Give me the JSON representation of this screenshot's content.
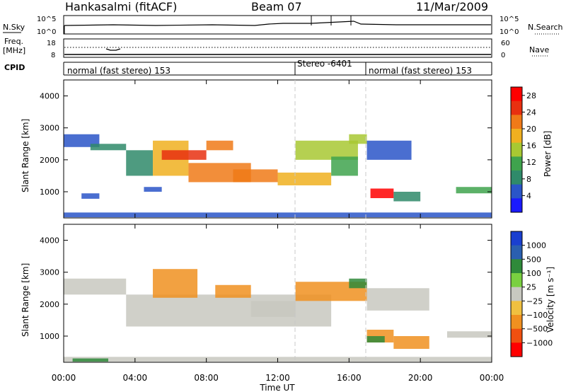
{
  "header": {
    "station": "Hankasalmi (fitACF)",
    "beam": "Beam 07",
    "date": "11/Mar/2009"
  },
  "nsky_panel": {
    "left_label": "N.Sky",
    "left_tick_top": "10^5",
    "left_tick_bottom": "10^0",
    "right_label": "N.Search",
    "right_tick_top": "10^5",
    "right_tick_bottom": "10^0"
  },
  "freq_panel": {
    "label_line1": "Freq.",
    "label_line2": "[MHz]",
    "tick_top": "18",
    "tick_bottom": "8",
    "right_tick_top": "60",
    "right_tick_bottom": "0",
    "right_label": "Nave"
  },
  "cpid_panel": {
    "label": "CPID",
    "segments": [
      {
        "text": "normal (fast stereo) 153",
        "start_hour": 0,
        "end_hour": 13.0
      },
      {
        "text": "Stereo -6401",
        "start_hour": 13.0,
        "end_hour": 17.0
      },
      {
        "text": "normal (fast stereo) 153",
        "start_hour": 17.0,
        "end_hour": 24.0
      }
    ]
  },
  "colors": {
    "power_scale": [
      "#1a1aff",
      "#2a55c8",
      "#2f8a6a",
      "#3fa34d",
      "#a8c832",
      "#f0b020",
      "#f07a18",
      "#e83010",
      "#ff0000"
    ],
    "velocity_scale": [
      "#1a3fd0",
      "#2a5fb0",
      "#2f8a3a",
      "#7ad040",
      "#c8c8c0",
      "#f0c040",
      "#f09020",
      "#f05010",
      "#ff0000"
    ],
    "gridline": "#c8c8c8"
  },
  "chart_data": [
    {
      "type": "heatmap",
      "title": "",
      "xlabel": "Time UT",
      "ylabel": "Slant Range [km]",
      "xlim": [
        0,
        24
      ],
      "ylim": [
        180,
        4500
      ],
      "x_ticks": [
        "00:00",
        "04:00",
        "08:00",
        "12:00",
        "16:00",
        "20:00",
        "00:00"
      ],
      "y_ticks": [
        1000,
        2000,
        3000,
        4000
      ],
      "colorbar": {
        "label": "Power [dB]",
        "ticks": [
          4,
          8,
          12,
          16,
          20,
          24,
          28
        ],
        "range": [
          0,
          30
        ]
      },
      "regions": [
        {
          "t0": 0.0,
          "t1": 2.0,
          "r0": 2400,
          "r1": 2800,
          "value": 6
        },
        {
          "t0": 1.5,
          "t1": 3.5,
          "r0": 2300,
          "r1": 2500,
          "value": 9
        },
        {
          "t0": 3.5,
          "t1": 5.0,
          "r0": 1500,
          "r1": 2300,
          "value": 8
        },
        {
          "t0": 5.0,
          "t1": 7.0,
          "r0": 1500,
          "r1": 2600,
          "value": 18
        },
        {
          "t0": 5.5,
          "t1": 8.0,
          "r0": 2000,
          "r1": 2300,
          "value": 24
        },
        {
          "t0": 7.0,
          "t1": 10.5,
          "r0": 1300,
          "r1": 1900,
          "value": 20
        },
        {
          "t0": 8.0,
          "t1": 9.5,
          "r0": 2300,
          "r1": 2600,
          "value": 22
        },
        {
          "t0": 9.5,
          "t1": 12.0,
          "r0": 1300,
          "r1": 1700,
          "value": 21
        },
        {
          "t0": 12.0,
          "t1": 15.0,
          "r0": 1200,
          "r1": 1600,
          "value": 19
        },
        {
          "t0": 13.0,
          "t1": 16.5,
          "r0": 2000,
          "r1": 2600,
          "value": 14
        },
        {
          "t0": 15.0,
          "t1": 16.5,
          "r0": 1500,
          "r1": 2100,
          "value": 12
        },
        {
          "t0": 16.0,
          "t1": 17.0,
          "r0": 2500,
          "r1": 2800,
          "value": 16
        },
        {
          "t0": 17.0,
          "t1": 19.5,
          "r0": 2000,
          "r1": 2600,
          "value": 6
        },
        {
          "t0": 17.2,
          "t1": 18.5,
          "r0": 800,
          "r1": 1100,
          "value": 27
        },
        {
          "t0": 18.5,
          "t1": 20.0,
          "r0": 700,
          "r1": 1000,
          "value": 7
        },
        {
          "t0": 22.0,
          "t1": 24.0,
          "r0": 950,
          "r1": 1150,
          "value": 12
        },
        {
          "t0": 0.0,
          "t1": 24.0,
          "r0": 200,
          "r1": 350,
          "value": 5
        },
        {
          "t0": 1.0,
          "t1": 2.0,
          "r0": 780,
          "r1": 950,
          "value": 4
        },
        {
          "t0": 4.5,
          "t1": 5.5,
          "r0": 1000,
          "r1": 1150,
          "value": 6
        }
      ]
    },
    {
      "type": "heatmap",
      "title": "",
      "xlabel": "Time UT",
      "ylabel": "Slant Range [km]",
      "xlim": [
        0,
        24
      ],
      "ylim": [
        180,
        4500
      ],
      "x_ticks": [
        "00:00",
        "04:00",
        "08:00",
        "12:00",
        "16:00",
        "20:00",
        "00:00"
      ],
      "y_ticks": [
        1000,
        2000,
        3000,
        4000
      ],
      "colorbar": {
        "label": "Velocity [m s⁻¹]",
        "ticks": [
          "1000",
          "500",
          "100",
          "25",
          "−25",
          "−100",
          "−500",
          "−1000"
        ]
      },
      "regions": [
        {
          "t0": 0.0,
          "t1": 3.5,
          "r0": 2300,
          "r1": 2800,
          "value": 0
        },
        {
          "t0": 3.5,
          "t1": 15.0,
          "r0": 1300,
          "r1": 2300,
          "value": 0
        },
        {
          "t0": 5.0,
          "t1": 7.5,
          "r0": 2200,
          "r1": 3100,
          "value": -300
        },
        {
          "t0": 8.5,
          "t1": 10.5,
          "r0": 2200,
          "r1": 2600,
          "value": -200
        },
        {
          "t0": 10.5,
          "t1": 13.0,
          "r0": 1600,
          "r1": 2100,
          "value": 0
        },
        {
          "t0": 13.0,
          "t1": 17.0,
          "r0": 2100,
          "r1": 2700,
          "value": -150
        },
        {
          "t0": 16.0,
          "t1": 17.0,
          "r0": 2500,
          "r1": 2800,
          "value": 150
        },
        {
          "t0": 17.0,
          "t1": 20.5,
          "r0": 1800,
          "r1": 2500,
          "value": 0
        },
        {
          "t0": 17.0,
          "t1": 18.5,
          "r0": 800,
          "r1": 1200,
          "value": -400
        },
        {
          "t0": 17.0,
          "t1": 18.0,
          "r0": 800,
          "r1": 1000,
          "value": 200
        },
        {
          "t0": 18.5,
          "t1": 20.5,
          "r0": 600,
          "r1": 1000,
          "value": -150
        },
        {
          "t0": 21.5,
          "t1": 24.0,
          "r0": 950,
          "r1": 1150,
          "value": 0
        },
        {
          "t0": 0.0,
          "t1": 24.0,
          "r0": 200,
          "r1": 350,
          "value": 0
        },
        {
          "t0": 0.5,
          "t1": 2.5,
          "r0": 200,
          "r1": 300,
          "value": 150
        }
      ]
    }
  ]
}
